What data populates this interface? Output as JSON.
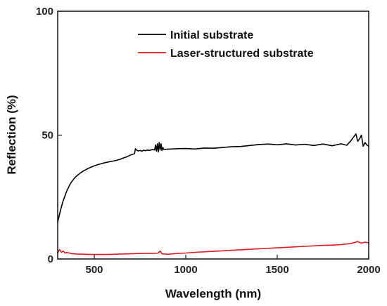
{
  "chart_data": {
    "type": "line",
    "title": "",
    "xlabel": "Wavelength (nm)",
    "ylabel": "Reflection (%)",
    "xlim": [
      300,
      2000
    ],
    "ylim": [
      0,
      100
    ],
    "x_ticks": [
      500,
      1000,
      1500,
      2000
    ],
    "y_ticks": [
      0,
      50,
      100
    ],
    "x_tick_labels": [
      "500",
      "1000",
      "1500",
      "2000"
    ],
    "y_tick_labels": [
      "0",
      "50",
      "100"
    ],
    "grid": false,
    "legend_position": "top-center",
    "series": [
      {
        "name": "Initial substrate",
        "color": "#000000",
        "x": [
          300,
          310,
          320,
          330,
          340,
          350,
          360,
          370,
          380,
          390,
          400,
          420,
          440,
          460,
          480,
          500,
          520,
          540,
          560,
          580,
          600,
          620,
          640,
          660,
          680,
          700,
          720,
          725,
          730,
          740,
          750,
          760,
          770,
          780,
          790,
          800,
          810,
          820,
          830,
          835,
          840,
          845,
          850,
          855,
          860,
          865,
          870,
          875,
          880,
          900,
          950,
          1000,
          1050,
          1100,
          1150,
          1200,
          1250,
          1300,
          1350,
          1400,
          1450,
          1500,
          1550,
          1600,
          1650,
          1700,
          1750,
          1800,
          1850,
          1880,
          1900,
          1910,
          1920,
          1930,
          1940,
          1950,
          1960,
          1970,
          1980,
          1990,
          2000
        ],
        "y": [
          15,
          18,
          21,
          23.5,
          25.5,
          27.5,
          29,
          30.5,
          31.5,
          32.5,
          33.3,
          34.5,
          35.5,
          36.3,
          37,
          37.6,
          38.1,
          38.5,
          38.9,
          39.2,
          39.5,
          39.8,
          40.2,
          40.8,
          41.3,
          42,
          42.5,
          44.5,
          44,
          43.6,
          43.8,
          43.5,
          43.9,
          43.7,
          44,
          43.8,
          44,
          44.2,
          44,
          46,
          43.5,
          46.5,
          43.2,
          47,
          44,
          46.5,
          43.8,
          45,
          44.2,
          44.3,
          44.5,
          44.6,
          44.4,
          44.8,
          44.7,
          45,
          45.3,
          45.4,
          45.8,
          46.2,
          46.4,
          46.1,
          46.5,
          46,
          46.3,
          45.8,
          46.4,
          45.7,
          46.5,
          45.9,
          47.5,
          48.5,
          49.5,
          50.5,
          47.5,
          48.5,
          50,
          45.5,
          47,
          46,
          45.5
        ]
      },
      {
        "name": "Laser-structured substrate",
        "color": "#e0191e",
        "x": [
          300,
          310,
          320,
          330,
          340,
          350,
          375,
          400,
          450,
          500,
          550,
          600,
          650,
          700,
          750,
          800,
          830,
          850,
          860,
          870,
          900,
          950,
          1000,
          1050,
          1100,
          1150,
          1200,
          1250,
          1300,
          1350,
          1400,
          1450,
          1500,
          1550,
          1600,
          1650,
          1700,
          1750,
          1800,
          1850,
          1900,
          1920,
          1940,
          1960,
          1980,
          2000
        ],
        "y": [
          2.5,
          3.8,
          2.7,
          3.2,
          2.4,
          2.6,
          2.2,
          2,
          1.9,
          1.8,
          1.8,
          1.9,
          2,
          2.1,
          2.2,
          2.3,
          2.3,
          2.4,
          3.2,
          2.1,
          1.9,
          2.2,
          2.4,
          2.7,
          2.9,
          3.1,
          3.3,
          3.5,
          3.7,
          3.9,
          4.1,
          4.3,
          4.5,
          4.7,
          4.9,
          5.1,
          5.3,
          5.5,
          5.6,
          5.8,
          6.2,
          6.6,
          7,
          6.4,
          6.8,
          6.5
        ]
      }
    ]
  }
}
